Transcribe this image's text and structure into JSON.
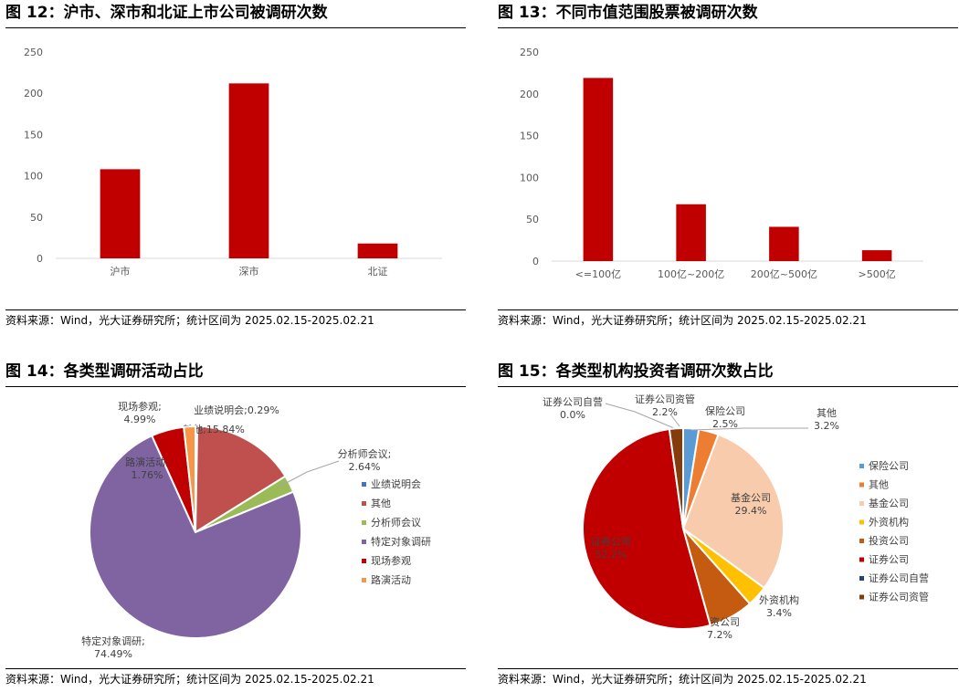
{
  "source_text": "资料来源：Wind，光大证券研究所；统计区间为 2025.02.15-2025.02.21",
  "chart_data": [
    {
      "type": "bar",
      "title": "图 12：沪市、深市和北证上市公司被调研次数",
      "categories": [
        "沪市",
        "深市",
        "北证"
      ],
      "values": [
        108,
        212,
        18
      ],
      "ylim": [
        0,
        250
      ],
      "yticks": [
        0,
        50,
        100,
        150,
        200,
        250
      ],
      "color": "#C00000",
      "grid": false
    },
    {
      "type": "bar",
      "title": "图 13：不同市值范围股票被调研次数",
      "categories": [
        "<=100亿",
        "100亿~200亿",
        "200亿~500亿",
        ">500亿"
      ],
      "values": [
        219,
        68,
        41,
        13
      ],
      "ylim": [
        0,
        250
      ],
      "yticks": [
        0,
        50,
        100,
        150,
        200,
        250
      ],
      "color": "#C00000",
      "grid": false
    },
    {
      "type": "pie",
      "title": "图 14：各类型调研活动占比",
      "legend_position": "right",
      "slices": [
        {
          "name": "业绩说明会",
          "value": 0.29,
          "color": "#4472C4",
          "label": "业绩说明会;0.29%"
        },
        {
          "name": "其他",
          "value": 15.84,
          "color": "#C0504D",
          "label": "其他;15.84%"
        },
        {
          "name": "分析师会议",
          "value": 2.64,
          "color": "#9BBB59",
          "label": "分析师会议;\n2.64%"
        },
        {
          "name": "特定对象调研",
          "value": 74.49,
          "color": "#8064A2",
          "label": "特定对象调研;\n74.49%"
        },
        {
          "name": "现场参观",
          "value": 4.99,
          "color": "#C00000",
          "label": "现场参观;\n4.99%"
        },
        {
          "name": "路演活动",
          "value": 1.76,
          "color": "#F79646",
          "label": "路演活动;\n1.76%"
        }
      ]
    },
    {
      "type": "pie",
      "title": "图 15：各类型机构投资者调研次数占比",
      "legend_position": "right",
      "slices": [
        {
          "name": "保险公司",
          "value": 2.5,
          "color": "#5B9BD5",
          "label": "保险公司\n2.5%"
        },
        {
          "name": "其他",
          "value": 3.2,
          "color": "#ED7D31",
          "label": "其他\n3.2%"
        },
        {
          "name": "基金公司",
          "value": 29.4,
          "color": "#F8CBAD",
          "label": "基金公司\n29.4%"
        },
        {
          "name": "外资机构",
          "value": 3.4,
          "color": "#FFC000",
          "label": "外资机构\n3.4%"
        },
        {
          "name": "投资公司",
          "value": 7.2,
          "color": "#C55A11",
          "label": "投资公司\n7.2%"
        },
        {
          "name": "证券公司",
          "value": 52.2,
          "color": "#C00000",
          "label": "证券公司\n52.2%"
        },
        {
          "name": "证券公司自营",
          "value": 0.0,
          "color": "#264478",
          "label": "证券公司自营\n0.0%"
        },
        {
          "name": "证券公司资管",
          "value": 2.2,
          "color": "#843C0C",
          "label": "证券公司资管\n2.2%"
        }
      ]
    }
  ]
}
